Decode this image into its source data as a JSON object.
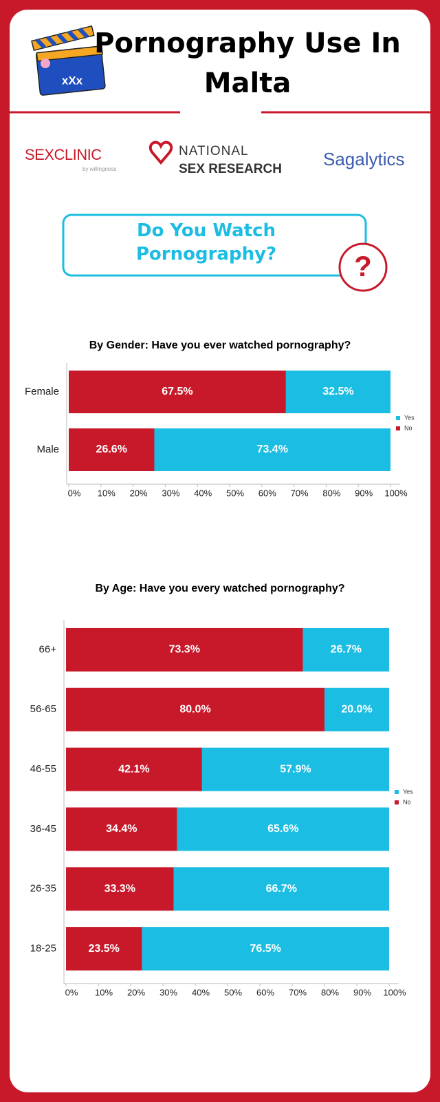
{
  "header": {
    "title": "Pornography Use In Malta",
    "icon_text": "xXx"
  },
  "logos": {
    "sexclinic": {
      "name": "SEXCLINIC",
      "tagline": "by willingness"
    },
    "national": {
      "line1": "NATIONAL",
      "line2": "SEX RESEARCH"
    },
    "sagalytics": {
      "name": "Sagalytics"
    }
  },
  "question": {
    "text": "Do You Watch Pornography?",
    "icon": "?"
  },
  "chart_data": [
    {
      "type": "bar",
      "orientation": "horizontal",
      "stacked": true,
      "title": "By Gender: Have you ever watched pornography?",
      "categories": [
        "Female",
        "Male"
      ],
      "series": [
        {
          "name": "No",
          "color": "#c8192b",
          "values": [
            67.5,
            26.6
          ],
          "value_labels": [
            "67.5%",
            "26.6%"
          ]
        },
        {
          "name": "Yes",
          "color": "#1bbde3",
          "values": [
            32.5,
            73.4
          ],
          "value_labels": [
            "32.5%",
            "73.4%"
          ]
        }
      ],
      "xlim": [
        0,
        100
      ],
      "xticks": [
        {
          "value": 0,
          "label": "0%"
        },
        {
          "value": 10,
          "label": "10%"
        },
        {
          "value": 20,
          "label": "20%"
        },
        {
          "value": 30,
          "label": "30%"
        },
        {
          "value": 40,
          "label": "40%"
        },
        {
          "value": 50,
          "label": "50%"
        },
        {
          "value": 60,
          "label": "60%"
        },
        {
          "value": 70,
          "label": "70%"
        },
        {
          "value": 80,
          "label": "80%"
        },
        {
          "value": 90,
          "label": "90%"
        },
        {
          "value": 100,
          "label": "100%"
        }
      ],
      "grid": false,
      "legend": "right"
    },
    {
      "type": "bar",
      "orientation": "horizontal",
      "stacked": true,
      "title": "By Age: Have you every watched pornography?",
      "categories": [
        "66+",
        "56-65",
        "46-55",
        "36-45",
        "26-35",
        "18-25"
      ],
      "series": [
        {
          "name": "No",
          "color": "#c8192b",
          "values": [
            73.3,
            80.0,
            42.1,
            34.4,
            33.3,
            23.5
          ],
          "value_labels": [
            "73.3%",
            "80.0%",
            "42.1%",
            "34.4%",
            "33.3%",
            "23.5%"
          ]
        },
        {
          "name": "Yes",
          "color": "#1bbde3",
          "values": [
            26.7,
            20.0,
            57.9,
            65.6,
            66.7,
            76.5
          ],
          "value_labels": [
            "26.7%",
            "20.0%",
            "57.9%",
            "65.6%",
            "66.7%",
            "76.5%"
          ]
        }
      ],
      "xlim": [
        0,
        100
      ],
      "xticks": [
        {
          "value": 0,
          "label": "0%"
        },
        {
          "value": 10,
          "label": "10%"
        },
        {
          "value": 20,
          "label": "20%"
        },
        {
          "value": 30,
          "label": "30%"
        },
        {
          "value": 40,
          "label": "40%"
        },
        {
          "value": 50,
          "label": "50%"
        },
        {
          "value": 60,
          "label": "60%"
        },
        {
          "value": 70,
          "label": "70%"
        },
        {
          "value": 80,
          "label": "80%"
        },
        {
          "value": 90,
          "label": "90%"
        },
        {
          "value": 100,
          "label": "100%"
        }
      ],
      "grid": false,
      "legend": "right"
    }
  ]
}
